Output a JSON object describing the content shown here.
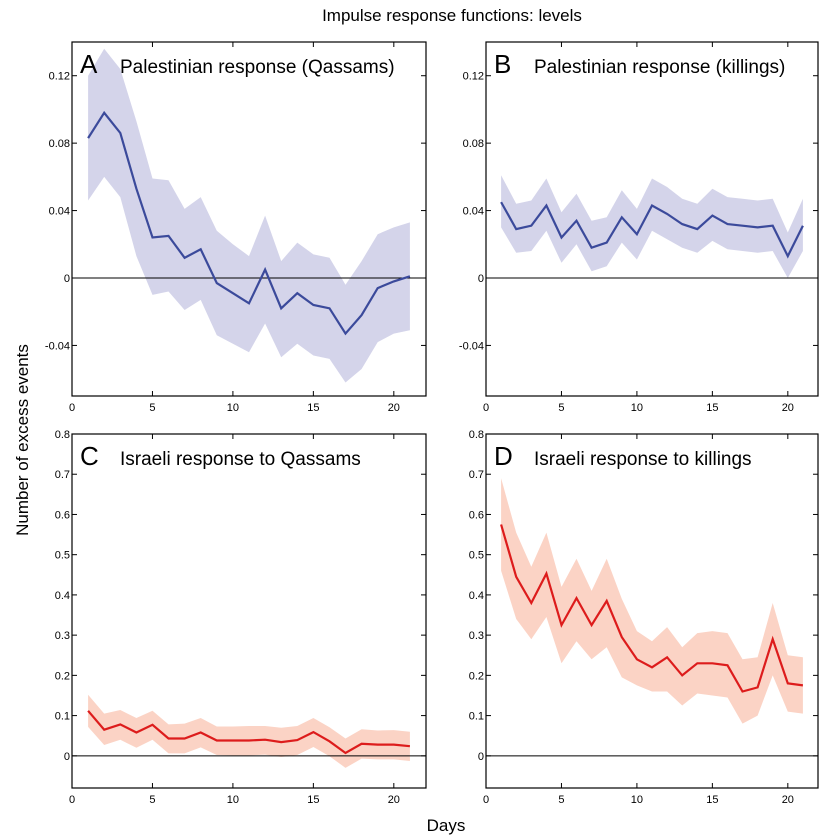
{
  "figure": {
    "title": "Impulse response functions: levels",
    "ylabel": "Number of excess events",
    "xlabel": "Days"
  },
  "colors": {
    "blue_line": "#3b4a9b",
    "blue_band": "#d4d4ea",
    "red_line": "#dd1c1c",
    "red_band": "#fbd3c5"
  },
  "chart_data": [
    {
      "type": "line",
      "letter": "A",
      "title": "Palestinian response (Qassams)",
      "xlim": [
        0,
        22
      ],
      "ylim": [
        -0.07,
        0.14
      ],
      "xticks": [
        0,
        5,
        10,
        15,
        20
      ],
      "xtick_labels": [
        "0",
        "5",
        "10",
        "15",
        "20"
      ],
      "yticks": [
        -0.04,
        0,
        0.04,
        0.08,
        0.12
      ],
      "ytick_labels": [
        "-0.04",
        "0",
        "0.04",
        "0.08",
        "0.12"
      ],
      "color": "blue",
      "x": [
        1,
        2,
        3,
        4,
        5,
        6,
        7,
        8,
        9,
        10,
        11,
        12,
        13,
        14,
        15,
        16,
        17,
        18,
        19,
        20,
        21
      ],
      "y": [
        0.083,
        0.098,
        0.086,
        0.053,
        0.024,
        0.025,
        0.012,
        0.017,
        -0.003,
        -0.009,
        -0.015,
        0.005,
        -0.018,
        -0.009,
        -0.016,
        -0.018,
        -0.033,
        -0.022,
        -0.006,
        -0.002,
        0.001
      ],
      "upper": [
        0.12,
        0.136,
        0.124,
        0.093,
        0.059,
        0.058,
        0.041,
        0.048,
        0.028,
        0.02,
        0.013,
        0.037,
        0.01,
        0.021,
        0.014,
        0.012,
        -0.004,
        0.01,
        0.026,
        0.03,
        0.033
      ],
      "lower": [
        0.046,
        0.06,
        0.048,
        0.013,
        -0.01,
        -0.008,
        -0.019,
        -0.013,
        -0.034,
        -0.039,
        -0.044,
        -0.027,
        -0.047,
        -0.039,
        -0.046,
        -0.048,
        -0.062,
        -0.054,
        -0.038,
        -0.033,
        -0.031
      ]
    },
    {
      "type": "line",
      "letter": "B",
      "title": "Palestinian response (killings)",
      "xlim": [
        0,
        22
      ],
      "ylim": [
        -0.07,
        0.14
      ],
      "xticks": [
        0,
        5,
        10,
        15,
        20
      ],
      "xtick_labels": [
        "0",
        "5",
        "10",
        "15",
        "20"
      ],
      "yticks": [
        -0.04,
        0,
        0.04,
        0.08,
        0.12
      ],
      "ytick_labels": [
        "-0.04",
        "0",
        "0.04",
        "0.08",
        "0.12"
      ],
      "color": "blue",
      "x": [
        1,
        2,
        3,
        4,
        5,
        6,
        7,
        8,
        9,
        10,
        11,
        12,
        13,
        14,
        15,
        16,
        17,
        18,
        19,
        20,
        21
      ],
      "y": [
        0.045,
        0.029,
        0.031,
        0.043,
        0.024,
        0.034,
        0.018,
        0.021,
        0.036,
        0.026,
        0.043,
        0.038,
        0.032,
        0.029,
        0.037,
        0.032,
        0.031,
        0.03,
        0.031,
        0.013,
        0.031
      ],
      "upper": [
        0.061,
        0.044,
        0.046,
        0.059,
        0.039,
        0.05,
        0.034,
        0.036,
        0.052,
        0.041,
        0.059,
        0.054,
        0.047,
        0.044,
        0.053,
        0.048,
        0.047,
        0.046,
        0.047,
        0.027,
        0.047
      ],
      "lower": [
        0.03,
        0.015,
        0.016,
        0.028,
        0.009,
        0.02,
        0.004,
        0.007,
        0.021,
        0.011,
        0.028,
        0.023,
        0.018,
        0.015,
        0.022,
        0.017,
        0.016,
        0.015,
        0.016,
        0.0,
        0.016
      ]
    },
    {
      "type": "line",
      "letter": "C",
      "title": "Israeli response to Qassams",
      "xlim": [
        0,
        22
      ],
      "ylim": [
        -0.08,
        0.8
      ],
      "xticks": [
        0,
        5,
        10,
        15,
        20
      ],
      "xtick_labels": [
        "0",
        "5",
        "10",
        "15",
        "20"
      ],
      "yticks": [
        0,
        0.1,
        0.2,
        0.3,
        0.4,
        0.5,
        0.6,
        0.7,
        0.8
      ],
      "ytick_labels": [
        "0",
        "0.1",
        "0.2",
        "0.3",
        "0.4",
        "0.5",
        "0.6",
        "0.7",
        "0.8"
      ],
      "color": "red",
      "x": [
        1,
        2,
        3,
        4,
        5,
        6,
        7,
        8,
        9,
        10,
        11,
        12,
        13,
        14,
        15,
        16,
        17,
        18,
        19,
        20,
        21
      ],
      "y": [
        0.112,
        0.065,
        0.078,
        0.058,
        0.077,
        0.043,
        0.043,
        0.058,
        0.038,
        0.038,
        0.038,
        0.04,
        0.034,
        0.039,
        0.059,
        0.036,
        0.007,
        0.03,
        0.028,
        0.028,
        0.024
      ],
      "upper": [
        0.152,
        0.105,
        0.114,
        0.094,
        0.112,
        0.078,
        0.08,
        0.094,
        0.073,
        0.073,
        0.074,
        0.074,
        0.07,
        0.074,
        0.094,
        0.071,
        0.043,
        0.066,
        0.063,
        0.064,
        0.06
      ],
      "lower": [
        0.072,
        0.027,
        0.04,
        0.02,
        0.04,
        0.006,
        0.006,
        0.021,
        0.002,
        0.001,
        0.001,
        0.003,
        -0.003,
        0.002,
        0.022,
        -0.001,
        -0.03,
        -0.007,
        -0.009,
        -0.009,
        -0.013
      ]
    },
    {
      "type": "line",
      "letter": "D",
      "title": "Israeli response to killings",
      "xlim": [
        0,
        22
      ],
      "ylim": [
        -0.08,
        0.8
      ],
      "xticks": [
        0,
        5,
        10,
        15,
        20
      ],
      "xtick_labels": [
        "0",
        "5",
        "10",
        "15",
        "20"
      ],
      "yticks": [
        0,
        0.1,
        0.2,
        0.3,
        0.4,
        0.5,
        0.6,
        0.7,
        0.8
      ],
      "ytick_labels": [
        "0",
        "0.1",
        "0.2",
        "0.3",
        "0.4",
        "0.5",
        "0.6",
        "0.7",
        "0.8"
      ],
      "color": "red",
      "x": [
        1,
        2,
        3,
        4,
        5,
        6,
        7,
        8,
        9,
        10,
        11,
        12,
        13,
        14,
        15,
        16,
        17,
        18,
        19,
        20,
        21
      ],
      "y": [
        0.575,
        0.445,
        0.38,
        0.453,
        0.325,
        0.392,
        0.325,
        0.385,
        0.295,
        0.24,
        0.22,
        0.245,
        0.2,
        0.23,
        0.23,
        0.225,
        0.16,
        0.17,
        0.29,
        0.18,
        0.175
      ],
      "upper": [
        0.69,
        0.555,
        0.47,
        0.555,
        0.42,
        0.49,
        0.41,
        0.49,
        0.39,
        0.31,
        0.285,
        0.32,
        0.27,
        0.305,
        0.31,
        0.305,
        0.24,
        0.245,
        0.38,
        0.25,
        0.245
      ],
      "lower": [
        0.46,
        0.34,
        0.29,
        0.345,
        0.23,
        0.285,
        0.24,
        0.27,
        0.195,
        0.175,
        0.16,
        0.16,
        0.125,
        0.155,
        0.15,
        0.145,
        0.08,
        0.1,
        0.2,
        0.11,
        0.105
      ]
    }
  ]
}
